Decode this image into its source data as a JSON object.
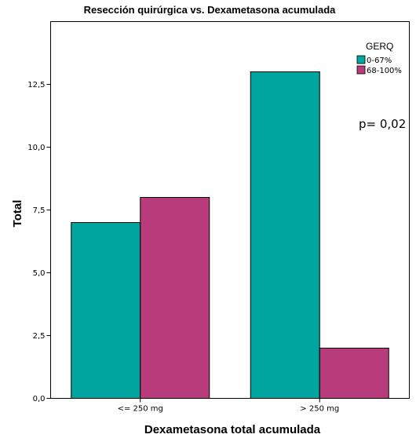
{
  "chart_data": {
    "type": "bar",
    "title": "Resección quirúrgica vs. Dexametasona acumulada",
    "xlabel": "Dexametasona total acumulada",
    "ylabel": "Total",
    "categories": [
      "<= 250 mg",
      "> 250 mg"
    ],
    "series": [
      {
        "name": "0-67%",
        "color": "#00a59f",
        "values": [
          7,
          13
        ]
      },
      {
        "name": "68-100%",
        "color": "#b83c7b",
        "values": [
          8,
          2
        ]
      }
    ],
    "ylim": [
      0,
      15
    ],
    "yticks": [
      0,
      2.5,
      5,
      7.5,
      10,
      12.5
    ],
    "ytick_labels": [
      "0,0",
      "2,5",
      "5,0",
      "7,5",
      "10,0",
      "12,5"
    ],
    "legend": {
      "title": "GERQ",
      "position": "top-right"
    },
    "annotation": "p= 0,02",
    "grid": false
  }
}
